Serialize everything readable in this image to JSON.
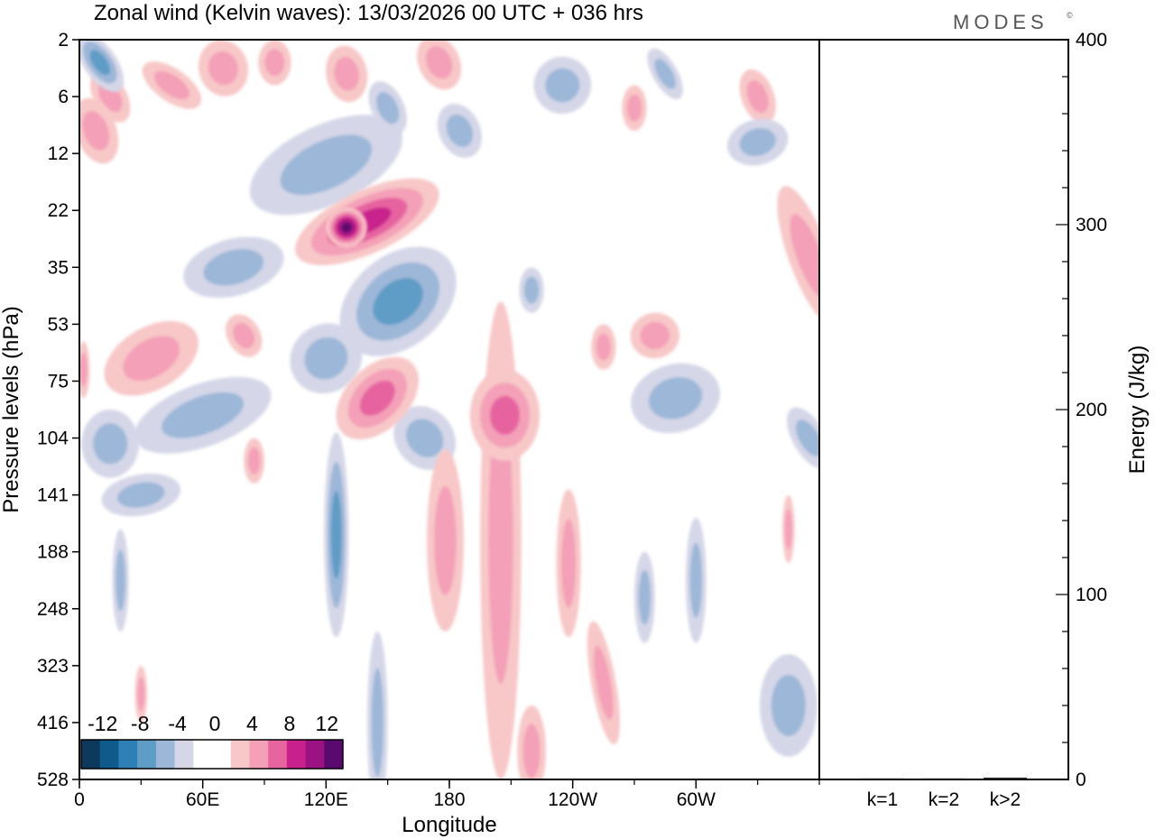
{
  "chart_data": [
    {
      "type": "heatmap",
      "title": "Zonal wind (Kelvin waves):  13/03/2026  00 UTC  + 036 hrs",
      "watermark": "MODES",
      "watermark_mark": "©",
      "xlabel": "Longitude",
      "ylabel": "Pressure levels (hPa)",
      "x_ticks": [
        {
          "deg": 0,
          "label": "0"
        },
        {
          "deg": 60,
          "label": "60E"
        },
        {
          "deg": 120,
          "label": "120E"
        },
        {
          "deg": 180,
          "label": "180"
        },
        {
          "deg": 240,
          "label": "120W"
        },
        {
          "deg": 300,
          "label": "60W"
        }
      ],
      "xlim": [
        0,
        360
      ],
      "y_levels": [
        "2",
        "6",
        "12",
        "22",
        "35",
        "53",
        "75",
        "104",
        "141",
        "188",
        "248",
        "323",
        "416",
        "528"
      ],
      "colorbar": {
        "tick_labels": [
          "-12",
          "-8",
          "-4",
          "0",
          "4",
          "8",
          "12"
        ],
        "colors": [
          "#0d3a5c",
          "#0f5a8a",
          "#2e7fb5",
          "#5f9cc6",
          "#9db7d8",
          "#d5d7e8",
          "#ffffff",
          "#ffffff",
          "#f8c8c8",
          "#f4a0b8",
          "#e664a0",
          "#c8208c",
          "#9b1382",
          "#5a0a6e"
        ]
      },
      "blobs": [
        {
          "lon": 10,
          "lev": 0.4,
          "a": 8,
          "b": 0.6,
          "rot": -35,
          "v": -6
        },
        {
          "lon": 15,
          "lev": 1.0,
          "a": 8,
          "b": 0.5,
          "rot": -30,
          "v": 5
        },
        {
          "lon": 8,
          "lev": 1.6,
          "a": 10,
          "b": 0.6,
          "rot": -20,
          "v": 5
        },
        {
          "lon": 45,
          "lev": 0.8,
          "a": 8,
          "b": 0.6,
          "rot": -55,
          "v": 5
        },
        {
          "lon": 70,
          "lev": 0.5,
          "a": 12,
          "b": 0.5,
          "rot": -15,
          "v": 4
        },
        {
          "lon": 95,
          "lev": 0.4,
          "a": 8,
          "b": 0.4,
          "rot": 0,
          "v": 4
        },
        {
          "lon": 130,
          "lev": 0.6,
          "a": 10,
          "b": 0.5,
          "rot": -10,
          "v": 4
        },
        {
          "lon": 175,
          "lev": 0.4,
          "a": 10,
          "b": 0.5,
          "rot": -25,
          "v": 4
        },
        {
          "lon": 235,
          "lev": 0.8,
          "a": 14,
          "b": 0.5,
          "rot": -20,
          "v": -4
        },
        {
          "lon": 270,
          "lev": 1.2,
          "a": 6,
          "b": 0.4,
          "rot": 0,
          "v": 4
        },
        {
          "lon": 285,
          "lev": 0.6,
          "a": 6,
          "b": 0.5,
          "rot": -30,
          "v": -4
        },
        {
          "lon": 330,
          "lev": 1.0,
          "a": 8,
          "b": 0.5,
          "rot": -20,
          "v": 4
        },
        {
          "lon": 120,
          "lev": 2.2,
          "a": 40,
          "b": 0.7,
          "rot": -25,
          "v": -4
        },
        {
          "lon": 140,
          "lev": 3.2,
          "a": 38,
          "b": 0.55,
          "rot": -25,
          "v": 9
        },
        {
          "lon": 130,
          "lev": 3.3,
          "a": 10,
          "b": 0.35,
          "rot": -20,
          "v": 13
        },
        {
          "lon": 75,
          "lev": 4.0,
          "a": 25,
          "b": 0.5,
          "rot": -15,
          "v": -4
        },
        {
          "lon": 35,
          "lev": 5.6,
          "a": 25,
          "b": 0.55,
          "rot": -30,
          "v": 5
        },
        {
          "lon": 155,
          "lev": 4.6,
          "a": 32,
          "b": 0.8,
          "rot": -40,
          "v": -6
        },
        {
          "lon": 120,
          "lev": 5.6,
          "a": 18,
          "b": 0.6,
          "rot": -35,
          "v": -5
        },
        {
          "lon": 80,
          "lev": 5.2,
          "a": 8,
          "b": 0.4,
          "rot": -30,
          "v": 4
        },
        {
          "lon": 145,
          "lev": 6.3,
          "a": 24,
          "b": 0.55,
          "rot": -45,
          "v": 7
        },
        {
          "lon": 60,
          "lev": 6.6,
          "a": 35,
          "b": 0.55,
          "rot": -20,
          "v": -4
        },
        {
          "lon": 15,
          "lev": 7.1,
          "a": 14,
          "b": 0.6,
          "rot": 0,
          "v": -5
        },
        {
          "lon": 30,
          "lev": 8.0,
          "a": 10,
          "b": 0.7,
          "rot": 80,
          "v": -4
        },
        {
          "lon": 125,
          "lev": 8.7,
          "a": 6,
          "b": 1.8,
          "rot": 0,
          "v": -7
        },
        {
          "lon": 168,
          "lev": 7.0,
          "a": 14,
          "b": 0.6,
          "rot": -40,
          "v": -4
        },
        {
          "lon": 178,
          "lev": 8.8,
          "a": 9,
          "b": 1.6,
          "rot": 0,
          "v": 4
        },
        {
          "lon": 205,
          "lev": 8.8,
          "a": 10,
          "b": 4.2,
          "rot": 0,
          "v": 4
        },
        {
          "lon": 207,
          "lev": 6.6,
          "a": 17,
          "b": 0.8,
          "rot": 0,
          "v": 7
        },
        {
          "lon": 220,
          "lev": 12.5,
          "a": 7,
          "b": 0.8,
          "rot": 0,
          "v": 4
        },
        {
          "lon": 238,
          "lev": 9.2,
          "a": 6,
          "b": 1.3,
          "rot": 0,
          "v": 4
        },
        {
          "lon": 255,
          "lev": 11.3,
          "a": 6,
          "b": 1.1,
          "rot": -10,
          "v": 4
        },
        {
          "lon": 290,
          "lev": 6.3,
          "a": 22,
          "b": 0.6,
          "rot": -15,
          "v": -5
        },
        {
          "lon": 280,
          "lev": 5.2,
          "a": 12,
          "b": 0.4,
          "rot": -10,
          "v": 4
        },
        {
          "lon": 300,
          "lev": 9.5,
          "a": 5,
          "b": 1.1,
          "rot": 0,
          "v": -4
        },
        {
          "lon": 275,
          "lev": 9.8,
          "a": 5,
          "b": 0.8,
          "rot": 0,
          "v": -4
        },
        {
          "lon": 355,
          "lev": 3.8,
          "a": 10,
          "b": 1.3,
          "rot": -20,
          "v": 5
        },
        {
          "lon": 345,
          "lev": 11.7,
          "a": 14,
          "b": 0.9,
          "rot": 0,
          "v": -4
        },
        {
          "lon": 355,
          "lev": 7.0,
          "a": 8,
          "b": 0.6,
          "rot": -30,
          "v": -4
        },
        {
          "lon": 145,
          "lev": 12.0,
          "a": 5,
          "b": 1.6,
          "rot": 0,
          "v": -4
        },
        {
          "lon": 20,
          "lev": 9.5,
          "a": 4,
          "b": 0.9,
          "rot": 0,
          "v": -4
        },
        {
          "lon": 220,
          "lev": 4.4,
          "a": 6,
          "b": 0.4,
          "rot": 0,
          "v": -4
        },
        {
          "lon": 255,
          "lev": 5.4,
          "a": 6,
          "b": 0.4,
          "rot": 0,
          "v": 4
        },
        {
          "lon": 345,
          "lev": 8.6,
          "a": 3,
          "b": 0.6,
          "rot": 0,
          "v": 4
        },
        {
          "lon": 30,
          "lev": 11.5,
          "a": 3,
          "b": 0.5,
          "rot": 0,
          "v": 4
        },
        {
          "lon": 85,
          "lev": 7.4,
          "a": 5,
          "b": 0.4,
          "rot": 0,
          "v": 4
        },
        {
          "lon": 2,
          "lev": 5.8,
          "a": 3,
          "b": 0.5,
          "rot": 0,
          "v": 4
        },
        {
          "lon": 150,
          "lev": 1.2,
          "a": 8,
          "b": 0.5,
          "rot": -25,
          "v": -4
        },
        {
          "lon": 185,
          "lev": 1.6,
          "a": 10,
          "b": 0.5,
          "rot": -25,
          "v": -4
        },
        {
          "lon": 330,
          "lev": 1.8,
          "a": 15,
          "b": 0.4,
          "rot": -15,
          "v": -4
        }
      ]
    },
    {
      "type": "bar",
      "ylabel": "Energy (J/kg)",
      "ylim": [
        0,
        400
      ],
      "y_ticks": [
        "0",
        "100",
        "200",
        "300",
        "400"
      ],
      "categories": [
        "k=1",
        "k=2",
        "k>2"
      ],
      "values": [
        0.5,
        0.5,
        1.0
      ]
    }
  ]
}
